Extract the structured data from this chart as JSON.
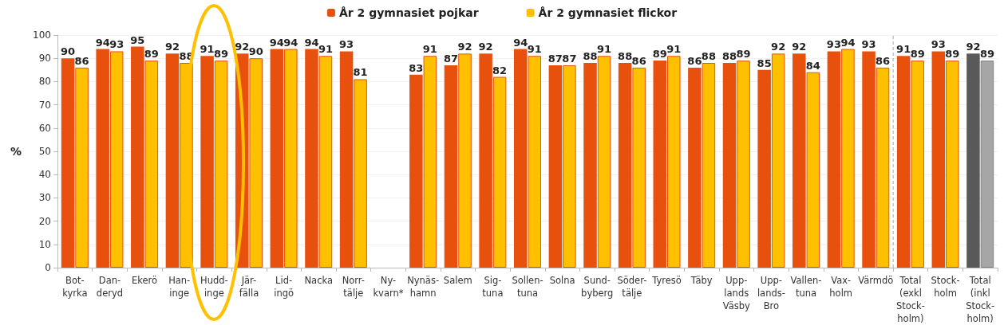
{
  "chart_data": {
    "type": "bar",
    "ylabel": "%",
    "categories": [
      "Bot-\nkyrka",
      "Dan-\nderyd",
      "Ekerö",
      "Han-\ninge",
      "Hudd-\ninge",
      "Jär-\nfälla",
      "Lid-\ningö",
      "Nacka",
      "Norr-\ntälje",
      "Ny-\nkvarn*",
      "Nynäs-\nhamn",
      "Salem",
      "Sig-\ntuna",
      "Sollen-\ntuna",
      "Solna",
      "Sund-\nbyberg",
      "Söder-\ntälje",
      "Tyresö",
      "Täby",
      "Upp-\nlands\nVäsby",
      "Upp-\nlands-\nBro",
      "Vallen-\ntuna",
      "Vax-\nholm",
      "Värmdö",
      "Total\n(exkl\nStock-\nholm)",
      "Stock-\nholm",
      "Total\n(inkl\nStock-\nholm)"
    ],
    "series": [
      {
        "name": "År 2 gymnasiet pojkar",
        "color": "#e8500e",
        "colors": [
          "#e8500e",
          "#e8500e",
          "#e8500e",
          "#e8500e",
          "#e8500e",
          "#e8500e",
          "#e8500e",
          "#e8500e",
          "#e8500e",
          "#e8500e",
          "#e8500e",
          "#e8500e",
          "#e8500e",
          "#e8500e",
          "#e8500e",
          "#e8500e",
          "#e8500e",
          "#e8500e",
          "#e8500e",
          "#e8500e",
          "#e8500e",
          "#e8500e",
          "#e8500e",
          "#e8500e",
          "#e8500e",
          "#e8500e",
          "#595959"
        ],
        "values": [
          90,
          94,
          95,
          92,
          91,
          92,
          94,
          94,
          93,
          null,
          83,
          87,
          92,
          94,
          87,
          88,
          88,
          89,
          86,
          88,
          85,
          92,
          93,
          93,
          91,
          93,
          92
        ]
      },
      {
        "name": "År 2 gymnasiet flickor",
        "color": "#ffc000",
        "colors": [
          "#ffc000",
          "#ffc000",
          "#ffc000",
          "#ffc000",
          "#ffc000",
          "#ffc000",
          "#ffc000",
          "#ffc000",
          "#ffc000",
          "#ffc000",
          "#ffc000",
          "#ffc000",
          "#ffc000",
          "#ffc000",
          "#ffc000",
          "#ffc000",
          "#ffc000",
          "#ffc000",
          "#ffc000",
          "#ffc000",
          "#ffc000",
          "#ffc000",
          "#ffc000",
          "#ffc000",
          "#ffc000",
          "#ffc000",
          "#a6a6a6"
        ],
        "values": [
          86,
          93,
          89,
          88,
          89,
          90,
          94,
          91,
          81,
          null,
          91,
          92,
          82,
          91,
          87,
          91,
          86,
          91,
          88,
          89,
          92,
          84,
          94,
          86,
          89,
          89,
          89
        ]
      }
    ],
    "ylim": [
      0,
      100
    ],
    "yticks": [
      0,
      10,
      20,
      30,
      40,
      50,
      60,
      70,
      80,
      90,
      100
    ],
    "ref_lines": [
      {
        "axis": "x",
        "value": "Total\n(exkl\nStock-\nholm)",
        "color": "#a6a6a6",
        "line_style": "dashed"
      }
    ],
    "data_labels": true,
    "grid": "y",
    "legend": "top"
  }
}
